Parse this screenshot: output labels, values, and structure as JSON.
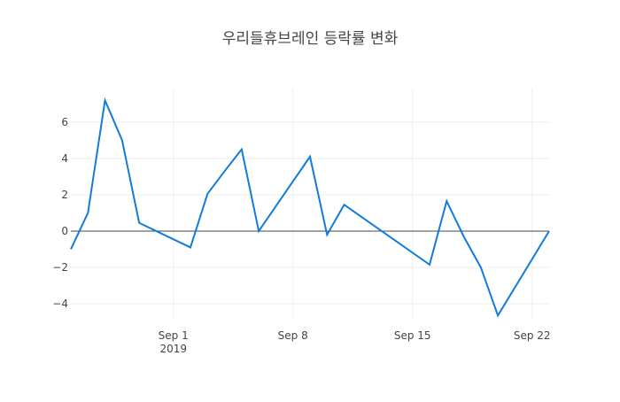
{
  "chart_data": {
    "type": "line",
    "title": "우리들휴브레인 등락률 변화",
    "x": [
      "2019-08-26",
      "2019-08-27",
      "2019-08-28",
      "2019-08-29",
      "2019-08-30",
      "2019-09-02",
      "2019-09-03",
      "2019-09-04",
      "2019-09-05",
      "2019-09-06",
      "2019-09-09",
      "2019-09-10",
      "2019-09-11",
      "2019-09-16",
      "2019-09-17",
      "2019-09-18",
      "2019-09-19",
      "2019-09-20",
      "2019-09-23"
    ],
    "series": [
      {
        "color": "#127bdb",
        "values": [
          -1.0,
          1.0,
          7.2,
          5.0,
          0.45,
          -0.9,
          2.05,
          3.3,
          4.5,
          0.0,
          4.1,
          -0.2,
          1.45,
          -1.85,
          1.65,
          -0.3,
          -2.0,
          -4.65,
          0.0
        ]
      }
    ],
    "xlim": [
      "2019-08-26",
      "2019-09-23"
    ],
    "xticks": [
      {
        "value": "2019-09-01",
        "label": "Sep 1\n2019"
      },
      {
        "value": "2019-09-08",
        "label": "Sep 8"
      },
      {
        "value": "2019-09-15",
        "label": "Sep 15"
      },
      {
        "value": "2019-09-22",
        "label": "Sep 22"
      }
    ],
    "ylim": [
      -4.83,
      7.85
    ],
    "yticks": [
      -4,
      -2,
      0,
      2,
      4,
      6
    ],
    "yticklabels": [
      "−4",
      "−2",
      "0",
      "2",
      "4",
      "6"
    ],
    "grid": true
  }
}
